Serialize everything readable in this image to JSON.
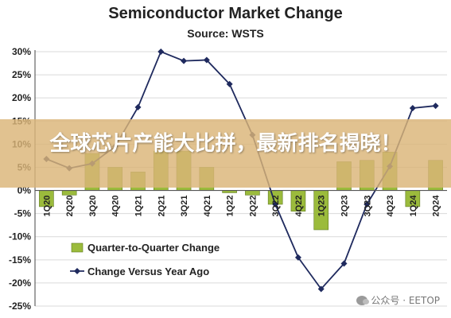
{
  "chart_data": {
    "type": "bar+line",
    "title": "Semiconductor Market Change",
    "subtitle": "Source: WSTS",
    "categories": [
      "1Q20",
      "2Q20",
      "3Q20",
      "4Q20",
      "1Q21",
      "2Q21",
      "3Q21",
      "4Q21",
      "1Q22",
      "2Q22",
      "3Q22",
      "4Q22",
      "1Q23",
      "2Q23",
      "3Q23",
      "4Q23",
      "1Q24",
      "2Q24"
    ],
    "series": [
      {
        "name": "Quarter-to-Quarter Change",
        "kind": "bar",
        "color": "#9bbb3c",
        "values": [
          -3.5,
          -1,
          8,
          5,
          4,
          8.5,
          8.5,
          5,
          -0.5,
          -1,
          -3,
          -4.5,
          -8.5,
          6.2,
          6.5,
          8.3,
          -3.5,
          6.5
        ]
      },
      {
        "name": "Change Versus Year Ago",
        "kind": "line",
        "color": "#1f2a5e",
        "values": [
          6.8,
          4.8,
          5.8,
          9.5,
          18,
          30,
          28,
          28.2,
          23,
          12,
          -3,
          -14.5,
          -21.3,
          -15.8,
          -3,
          5.2,
          17.8,
          18.3
        ]
      }
    ],
    "y_ticks": [
      "30%",
      "25%",
      "20%",
      "15%",
      "10%",
      "5%",
      "0%",
      "-5%",
      "-10%",
      "-15%",
      "-20%",
      "-25%"
    ],
    "ylim": [
      -25,
      30
    ],
    "legend": "bottom-left"
  },
  "overlay": {
    "banner_text": "全球芯片产能大比拼，最新排名揭晓！",
    "watermark": "公众号 · EETOP"
  }
}
